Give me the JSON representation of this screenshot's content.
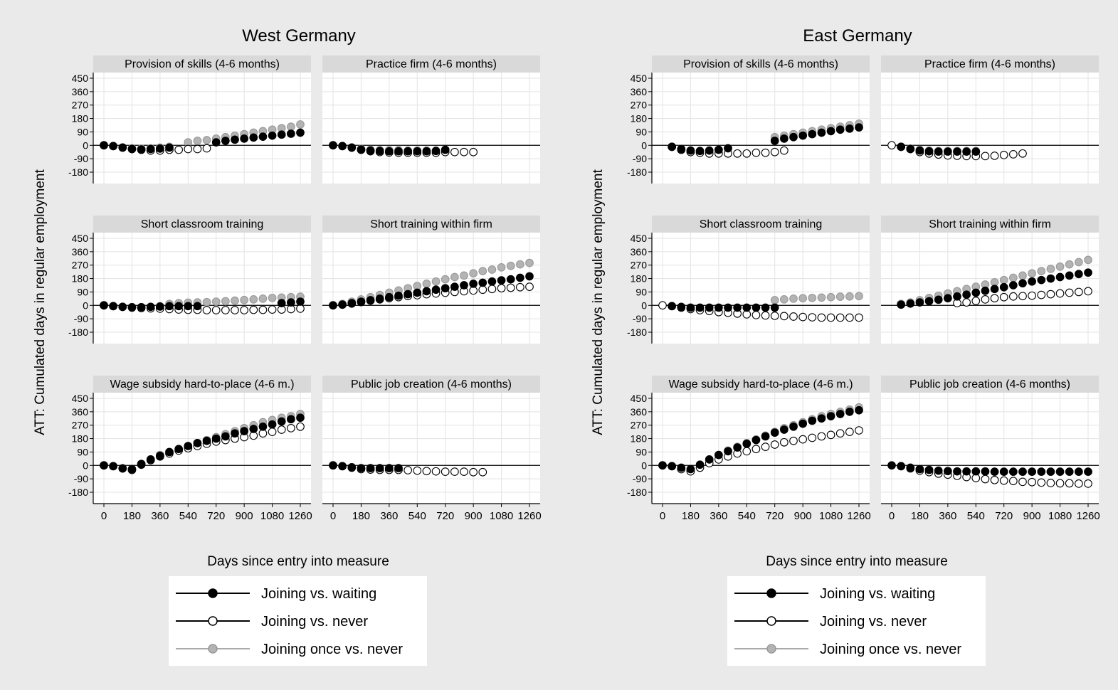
{
  "regions": [
    {
      "title": "West Germany"
    },
    {
      "title": "East Germany"
    }
  ],
  "ylabel": "ATT: Cumulated days in regular employment",
  "xlabel": "Days since entry into measure",
  "legend": [
    {
      "key": "waiting",
      "label": "Joining vs. waiting",
      "color": "#000000"
    },
    {
      "key": "never",
      "label": "Joining vs. never",
      "color": "#000000"
    },
    {
      "key": "once",
      "label": "Joining once vs. never",
      "color": "#aaaaaa"
    }
  ],
  "chart_data": {
    "type": "scatter",
    "xlim": [
      0,
      1260
    ],
    "ylim": [
      -180,
      450
    ],
    "x_ticks": [
      0,
      180,
      360,
      540,
      720,
      900,
      1080,
      1260
    ],
    "x_tick_labels": [
      "0",
      "180",
      "360",
      "540",
      "720",
      "900",
      "1080",
      "1260"
    ],
    "y_ticks": [
      -180,
      -90,
      0,
      90,
      180,
      270,
      360,
      450
    ],
    "y_tick_labels": [
      "-180",
      "-90",
      "0",
      "90",
      "180",
      "270",
      "360",
      "450"
    ],
    "x_points": [
      0,
      60,
      120,
      180,
      240,
      300,
      360,
      420,
      480,
      540,
      600,
      660,
      720,
      780,
      840,
      900,
      960,
      1020,
      1080,
      1140,
      1200,
      1260
    ],
    "panels": [
      {
        "region": "West Germany",
        "title": "Provision of skills (4-6 months)",
        "series": {
          "once": [
            0,
            -5,
            -15,
            -20,
            -22,
            -20,
            -15,
            -10,
            null,
            20,
            30,
            35,
            45,
            55,
            65,
            75,
            85,
            95,
            105,
            115,
            125,
            140
          ],
          "never": [
            0,
            -5,
            -15,
            -25,
            -30,
            -35,
            -35,
            -30,
            -30,
            -25,
            -25,
            -20,
            null,
            null,
            null,
            null,
            null,
            null,
            null,
            null,
            null,
            null
          ],
          "waiting": [
            0,
            -5,
            -15,
            -25,
            -28,
            -25,
            -22,
            -15,
            null,
            null,
            null,
            null,
            20,
            30,
            38,
            45,
            52,
            58,
            65,
            72,
            78,
            85
          ]
        }
      },
      {
        "region": "West Germany",
        "title": "Practice firm (4-6 months)",
        "series": {
          "once": [
            0,
            -5,
            -15,
            -25,
            -30,
            -32,
            -32,
            -32,
            -35,
            -35,
            -35,
            -35,
            null,
            null,
            null,
            null,
            null,
            null,
            null,
            null,
            null,
            null
          ],
          "never": [
            0,
            -5,
            -15,
            -30,
            -40,
            -45,
            -48,
            -50,
            -50,
            -50,
            -50,
            -50,
            -45,
            -45,
            -45,
            -45,
            null,
            null,
            null,
            null,
            null,
            null
          ],
          "waiting": [
            0,
            -5,
            -15,
            -28,
            -35,
            -38,
            -40,
            -40,
            -40,
            -40,
            -40,
            -38,
            -30,
            null,
            null,
            null,
            null,
            null,
            null,
            null,
            null,
            null
          ]
        }
      },
      {
        "region": "East Germany",
        "title": "Provision of skills (4-6 months)",
        "series": {
          "once": [
            null,
            -10,
            -25,
            -35,
            -40,
            -38,
            -32,
            -20,
            null,
            null,
            null,
            null,
            55,
            65,
            75,
            85,
            95,
            105,
            115,
            125,
            135,
            145
          ],
          "never": [
            null,
            -10,
            -30,
            -45,
            -50,
            -55,
            -55,
            -55,
            -55,
            -55,
            -50,
            -50,
            -45,
            -35,
            null,
            null,
            null,
            null,
            null,
            null,
            null,
            null
          ],
          "waiting": [
            null,
            -10,
            -25,
            -35,
            -38,
            -35,
            -30,
            -20,
            null,
            null,
            null,
            null,
            30,
            45,
            55,
            65,
            75,
            85,
            95,
            105,
            112,
            120
          ]
        }
      },
      {
        "region": "East Germany",
        "title": "Practice firm (4-6 months)",
        "series": {
          "once": [
            null,
            -10,
            -22,
            -30,
            -35,
            -38,
            -38,
            -38,
            -38,
            -38,
            null,
            null,
            null,
            null,
            null,
            null,
            null,
            null,
            null,
            null,
            null,
            null
          ],
          "never": [
            0,
            -10,
            -25,
            -45,
            -55,
            -62,
            -68,
            -70,
            -72,
            -72,
            -72,
            -70,
            -65,
            -60,
            -55,
            null,
            null,
            null,
            null,
            null,
            null,
            null
          ],
          "waiting": [
            null,
            -10,
            -25,
            -35,
            -40,
            -42,
            -42,
            -42,
            -42,
            -42,
            null,
            null,
            null,
            null,
            null,
            null,
            null,
            null,
            null,
            null,
            null,
            null
          ]
        }
      },
      {
        "region": "West Germany",
        "title": "Short classroom training",
        "series": {
          "once": [
            0,
            -5,
            -10,
            -12,
            -12,
            -10,
            -5,
            10,
            15,
            18,
            20,
            22,
            25,
            28,
            32,
            36,
            40,
            45,
            50,
            52,
            55,
            58
          ],
          "never": [
            0,
            -5,
            -10,
            -15,
            -18,
            -20,
            -22,
            -25,
            -28,
            -30,
            -30,
            -32,
            -32,
            -32,
            -32,
            -32,
            -30,
            -30,
            -28,
            -28,
            -25,
            -22
          ],
          "waiting": [
            0,
            -5,
            -10,
            -12,
            -12,
            -10,
            -8,
            -5,
            -5,
            -5,
            -5,
            null,
            null,
            null,
            null,
            null,
            null,
            null,
            null,
            15,
            20,
            25
          ]
        }
      },
      {
        "region": "West Germany",
        "title": "Short training within firm",
        "series": {
          "once": [
            null,
            10,
            25,
            40,
            55,
            70,
            85,
            100,
            115,
            130,
            145,
            160,
            175,
            190,
            200,
            215,
            230,
            240,
            255,
            265,
            275,
            285
          ],
          "never": [
            0,
            5,
            12,
            22,
            32,
            40,
            48,
            55,
            62,
            68,
            75,
            80,
            85,
            90,
            95,
            100,
            105,
            110,
            115,
            118,
            122,
            125
          ],
          "waiting": [
            0,
            5,
            15,
            25,
            35,
            45,
            55,
            65,
            75,
            85,
            95,
            105,
            115,
            125,
            135,
            145,
            152,
            160,
            168,
            175,
            185,
            195
          ]
        }
      },
      {
        "region": "East Germany",
        "title": "Short classroom training",
        "series": {
          "once": [
            null,
            null,
            null,
            null,
            null,
            null,
            null,
            null,
            null,
            null,
            null,
            null,
            35,
            40,
            45,
            48,
            50,
            52,
            55,
            58,
            60,
            62
          ],
          "never": [
            0,
            -5,
            -15,
            -25,
            -32,
            -38,
            -45,
            -50,
            -55,
            -60,
            -65,
            -68,
            -70,
            -72,
            -75,
            -78,
            -80,
            -82,
            -82,
            -82,
            -82,
            -82
          ],
          "waiting": [
            null,
            -5,
            -10,
            -15,
            -15,
            -15,
            -15,
            -15,
            -15,
            -15,
            -15,
            -15,
            -15,
            null,
            null,
            null,
            null,
            null,
            null,
            null,
            null,
            null
          ]
        }
      },
      {
        "region": "East Germany",
        "title": "Short training within firm",
        "series": {
          "once": [
            null,
            10,
            20,
            35,
            50,
            65,
            80,
            95,
            110,
            125,
            140,
            155,
            170,
            185,
            200,
            215,
            230,
            245,
            260,
            275,
            290,
            305
          ],
          "never": [
            null,
            null,
            null,
            null,
            null,
            null,
            null,
            15,
            20,
            30,
            40,
            48,
            55,
            60,
            62,
            65,
            70,
            75,
            80,
            85,
            90,
            95
          ],
          "waiting": [
            null,
            5,
            12,
            20,
            28,
            38,
            48,
            60,
            72,
            85,
            98,
            110,
            122,
            135,
            148,
            160,
            170,
            180,
            190,
            200,
            210,
            220
          ]
        }
      },
      {
        "region": "West Germany",
        "title": "Wage subsidy hard-to-place (4-6 m.)",
        "series": {
          "once": [
            0,
            -5,
            -20,
            -30,
            10,
            40,
            70,
            90,
            110,
            130,
            150,
            170,
            190,
            210,
            230,
            250,
            270,
            290,
            305,
            320,
            330,
            345
          ],
          "never": [
            0,
            -5,
            -20,
            -30,
            5,
            35,
            60,
            80,
            100,
            115,
            130,
            145,
            160,
            170,
            180,
            190,
            200,
            215,
            225,
            240,
            250,
            260
          ],
          "waiting": [
            0,
            -5,
            -20,
            -25,
            10,
            40,
            65,
            90,
            110,
            130,
            150,
            165,
            180,
            195,
            215,
            230,
            245,
            260,
            275,
            295,
            310,
            320
          ]
        }
      },
      {
        "region": "West Germany",
        "title": "Public job creation (4-6 months)",
        "series": {
          "once": [
            0,
            -5,
            -15,
            -20,
            -20,
            -20,
            -20,
            -20,
            null,
            null,
            null,
            null,
            null,
            null,
            null,
            null,
            null,
            null,
            null,
            null,
            null,
            null
          ],
          "never": [
            0,
            -5,
            -15,
            -25,
            -28,
            -30,
            -30,
            -30,
            -32,
            -35,
            -38,
            -40,
            -42,
            -42,
            -42,
            -45,
            -45,
            null,
            null,
            null,
            null,
            null
          ],
          "waiting": [
            0,
            -5,
            -12,
            -18,
            -18,
            -18,
            -18,
            -18,
            null,
            null,
            null,
            null,
            null,
            null,
            null,
            null,
            null,
            null,
            null,
            null,
            null,
            null
          ]
        }
      },
      {
        "region": "East Germany",
        "title": "Wage subsidy hard-to-place (4-6 m.)",
        "series": {
          "once": [
            0,
            -5,
            -20,
            -35,
            0,
            35,
            70,
            100,
            125,
            150,
            175,
            200,
            225,
            250,
            270,
            290,
            310,
            330,
            345,
            360,
            375,
            390
          ],
          "never": [
            0,
            -5,
            -25,
            -40,
            -15,
            15,
            40,
            60,
            80,
            95,
            110,
            125,
            140,
            155,
            165,
            175,
            185,
            195,
            205,
            215,
            225,
            235
          ],
          "waiting": [
            0,
            -5,
            -15,
            -25,
            5,
            40,
            70,
            95,
            120,
            145,
            170,
            195,
            220,
            240,
            260,
            280,
            300,
            315,
            330,
            345,
            360,
            370
          ]
        }
      },
      {
        "region": "East Germany",
        "title": "Public job creation (4-6 months)",
        "series": {
          "once": [
            null,
            -5,
            -15,
            -25,
            -32,
            -38,
            -40,
            -42,
            -42,
            -42,
            -42,
            -42,
            -42,
            -42,
            -42,
            -42,
            -42,
            -42,
            -42,
            -42,
            -42,
            -42
          ],
          "never": [
            null,
            -5,
            -20,
            -35,
            -45,
            -55,
            -62,
            -70,
            -78,
            -85,
            -92,
            -98,
            -102,
            -105,
            -110,
            -112,
            -115,
            -118,
            -120,
            -120,
            -122,
            -122
          ],
          "waiting": [
            0,
            -5,
            -15,
            -25,
            -30,
            -35,
            -38,
            -40,
            -40,
            -40,
            -40,
            -42,
            -42,
            -42,
            -42,
            -42,
            -42,
            -42,
            -42,
            -42,
            -42,
            -42
          ]
        }
      }
    ]
  }
}
